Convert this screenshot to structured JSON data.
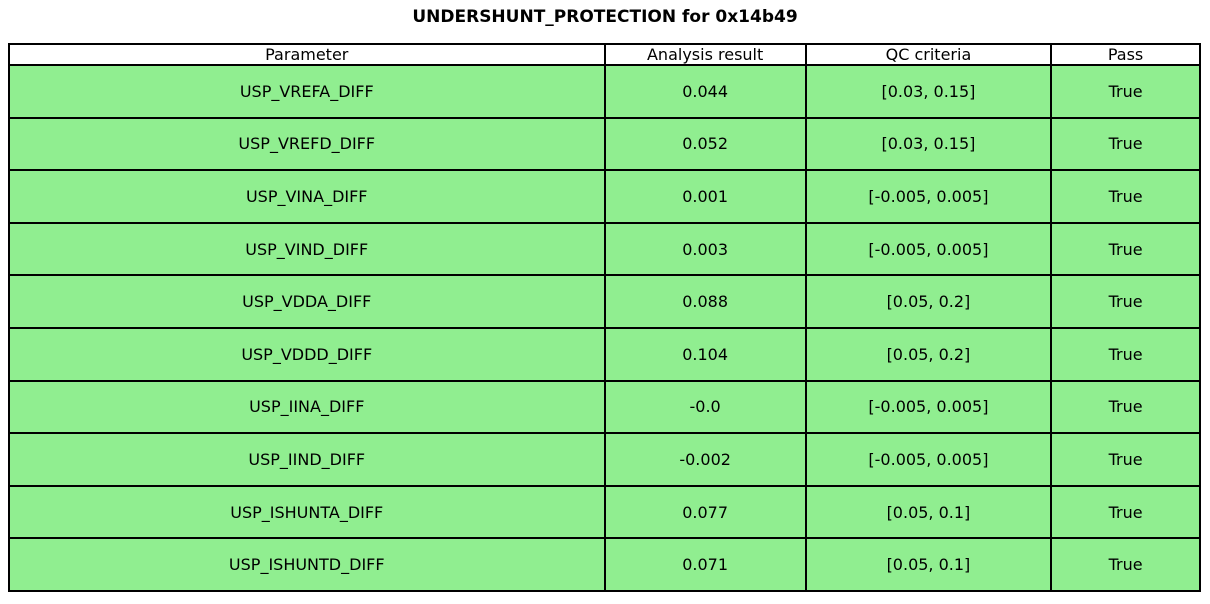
{
  "chart_data": {
    "type": "table",
    "title": "UNDERSHUNT_PROTECTION for 0x14b49",
    "columns": [
      "Parameter",
      "Analysis result",
      "QC criteria",
      "Pass"
    ],
    "rows": [
      [
        "USP_VREFA_DIFF",
        "0.044",
        "[0.03, 0.15]",
        "True"
      ],
      [
        "USP_VREFD_DIFF",
        "0.052",
        "[0.03, 0.15]",
        "True"
      ],
      [
        "USP_VINA_DIFF",
        "0.001",
        "[-0.005, 0.005]",
        "True"
      ],
      [
        "USP_VIND_DIFF",
        "0.003",
        "[-0.005, 0.005]",
        "True"
      ],
      [
        "USP_VDDA_DIFF",
        "0.088",
        "[0.05, 0.2]",
        "True"
      ],
      [
        "USP_VDDD_DIFF",
        "0.104",
        "[0.05, 0.2]",
        "True"
      ],
      [
        "USP_IINA_DIFF",
        "-0.0",
        "[-0.005, 0.005]",
        "True"
      ],
      [
        "USP_IIND_DIFF",
        "-0.002",
        "[-0.005, 0.005]",
        "True"
      ],
      [
        "USP_ISHUNTA_DIFF",
        "0.077",
        "[0.05, 0.1]",
        "True"
      ],
      [
        "USP_ISHUNTD_DIFF",
        "0.071",
        "[0.05, 0.1]",
        "True"
      ]
    ],
    "layout": {
      "header_fill_color": "#FFFFFF",
      "row_fill_color": "#90EE90",
      "border_color": "#000000",
      "text_color": "#000000",
      "all_pass": true
    }
  }
}
